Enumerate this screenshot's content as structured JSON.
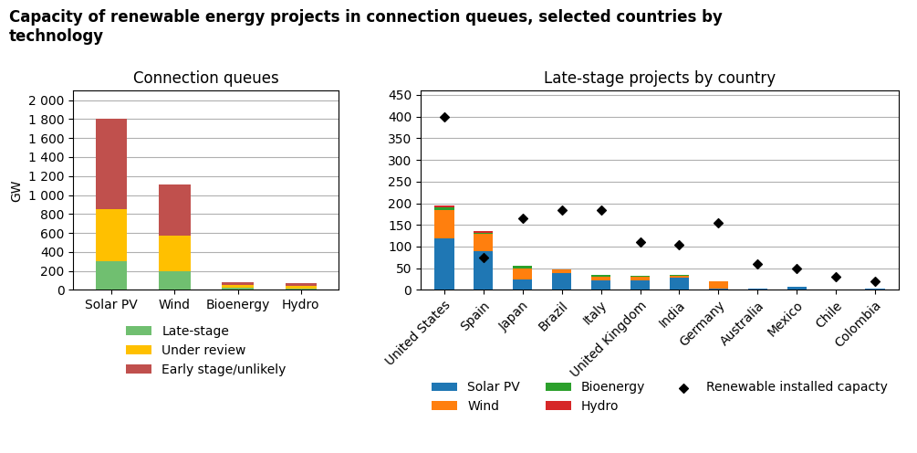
{
  "title": "Capacity of renewable energy projects in connection queues, selected countries by\ntechnology",
  "chart_data": [
    {
      "type": "bar",
      "stacked": true,
      "title": "Connection queues",
      "ylabel": "GW",
      "categories": [
        "Solar PV",
        "Wind",
        "Bioenergy",
        "Hydro"
      ],
      "series": [
        {
          "name": "Late-stage",
          "color": "#70bf70",
          "values": [
            300,
            200,
            20,
            15
          ]
        },
        {
          "name": "Under review",
          "color": "#ffc000",
          "values": [
            550,
            370,
            30,
            25
          ]
        },
        {
          "name": "Early stage/unlikely",
          "color": "#c0504d",
          "values": [
            950,
            540,
            30,
            30
          ]
        }
      ],
      "ylim": [
        0,
        2100
      ],
      "yticks": [
        0,
        200,
        400,
        600,
        800,
        {
          "value": 1000,
          "label": "1 000"
        },
        {
          "value": 1200,
          "label": "1 200"
        },
        {
          "value": 1400,
          "label": "1 400"
        },
        {
          "value": 1600,
          "label": "1 600"
        },
        {
          "value": 1800,
          "label": "1 800"
        },
        {
          "value": 2000,
          "label": "2 000"
        }
      ],
      "grid": true,
      "legend": "upper center"
    },
    {
      "type": "bar",
      "stacked": true,
      "title": "Late-stage projects by country",
      "categories": [
        "United States",
        "Spain",
        "Japan",
        "Brazil",
        "Italy",
        "United Kingdom",
        "India",
        "Germany",
        "Australia",
        "Mexico",
        "Chile",
        "Colombia"
      ],
      "series": [
        {
          "name": "Solar PV",
          "values": [
            120,
            90,
            25,
            38,
            22,
            22,
            28,
            4,
            2,
            8,
            1,
            2
          ]
        },
        {
          "name": "Wind",
          "values": [
            65,
            40,
            25,
            10,
            8,
            8,
            5,
            15,
            0,
            0,
            0,
            0
          ]
        },
        {
          "name": "Bioenergy",
          "values": [
            5,
            2,
            5,
            0,
            5,
            2,
            2,
            0,
            0,
            0,
            0,
            0
          ]
        },
        {
          "name": "Hydro",
          "values": [
            5,
            3,
            0,
            0,
            0,
            0,
            0,
            0,
            0,
            0,
            0,
            0
          ]
        },
        {
          "name": "Renewable installed capacty",
          "type": "scatter",
          "marker": "diamond",
          "color": "#000000",
          "values": [
            400,
            75,
            165,
            185,
            185,
            110,
            105,
            155,
            60,
            50,
            30,
            20
          ]
        }
      ],
      "ylim": [
        0,
        460
      ],
      "yticks": [
        0,
        50,
        100,
        150,
        200,
        250,
        300,
        350,
        400,
        450
      ],
      "grid": true,
      "legend": "upper center"
    }
  ]
}
